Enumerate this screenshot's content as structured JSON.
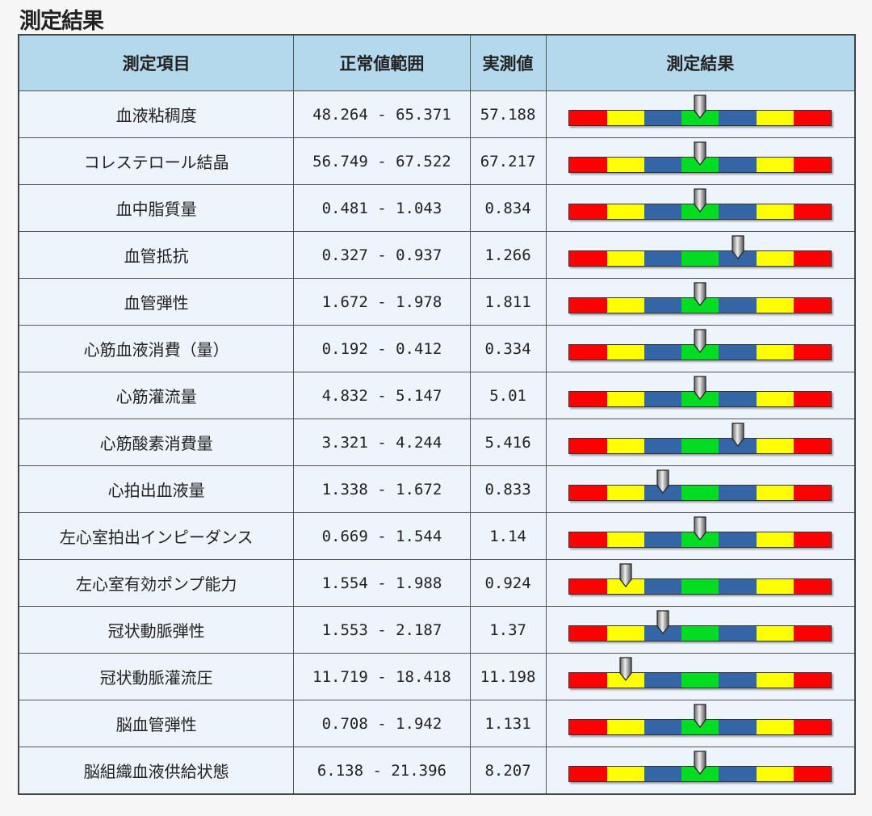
{
  "title": "測定結果",
  "headers": [
    "測定項目",
    "正常値範囲",
    "実測値",
    "測定結果"
  ],
  "scale_colors": [
    "#ff0000",
    "#ffff00",
    "#3465a4",
    "#00dd22",
    "#3465a4",
    "#ffff00",
    "#ff0000"
  ],
  "level_note_scale": "0-6 segment index, 3 = normal center",
  "rows": [
    {
      "item": "血液粘稠度",
      "range": "48.264 - 65.371",
      "value": "57.188",
      "level": 3
    },
    {
      "item": "コレステロール結晶",
      "range": "56.749 - 67.522",
      "value": "67.217",
      "level": 3
    },
    {
      "item": "血中脂質量",
      "range": "0.481 - 1.043",
      "value": "0.834",
      "level": 3
    },
    {
      "item": "血管抵抗",
      "range": "0.327 - 0.937",
      "value": "1.266",
      "level": 4
    },
    {
      "item": "血管弾性",
      "range": "1.672 - 1.978",
      "value": "1.811",
      "level": 3
    },
    {
      "item": "心筋血液消費（量）",
      "range": "0.192 - 0.412",
      "value": "0.334",
      "level": 3
    },
    {
      "item": "心筋灌流量",
      "range": "4.832 - 5.147",
      "value": "5.01",
      "level": 3
    },
    {
      "item": "心筋酸素消費量",
      "range": "3.321 - 4.244",
      "value": "5.416",
      "level": 4
    },
    {
      "item": "心拍出血液量",
      "range": "1.338 - 1.672",
      "value": "0.833",
      "level": 2
    },
    {
      "item": "左心室拍出インピーダンス",
      "range": "0.669 - 1.544",
      "value": "1.14",
      "level": 3
    },
    {
      "item": "左心室有効ポンプ能力",
      "range": "1.554 - 1.988",
      "value": "0.924",
      "level": 1
    },
    {
      "item": "冠状動脈弾性",
      "range": "1.553 - 2.187",
      "value": "1.37",
      "level": 2
    },
    {
      "item": "冠状動脈灌流圧",
      "range": "11.719 - 18.418",
      "value": "11.198",
      "level": 1
    },
    {
      "item": "脳血管弾性",
      "range": "0.708 - 1.942",
      "value": "1.131",
      "level": 3
    },
    {
      "item": "脳組織血液供給状態",
      "range": "6.138 - 21.396",
      "value": "8.207",
      "level": 3
    }
  ]
}
